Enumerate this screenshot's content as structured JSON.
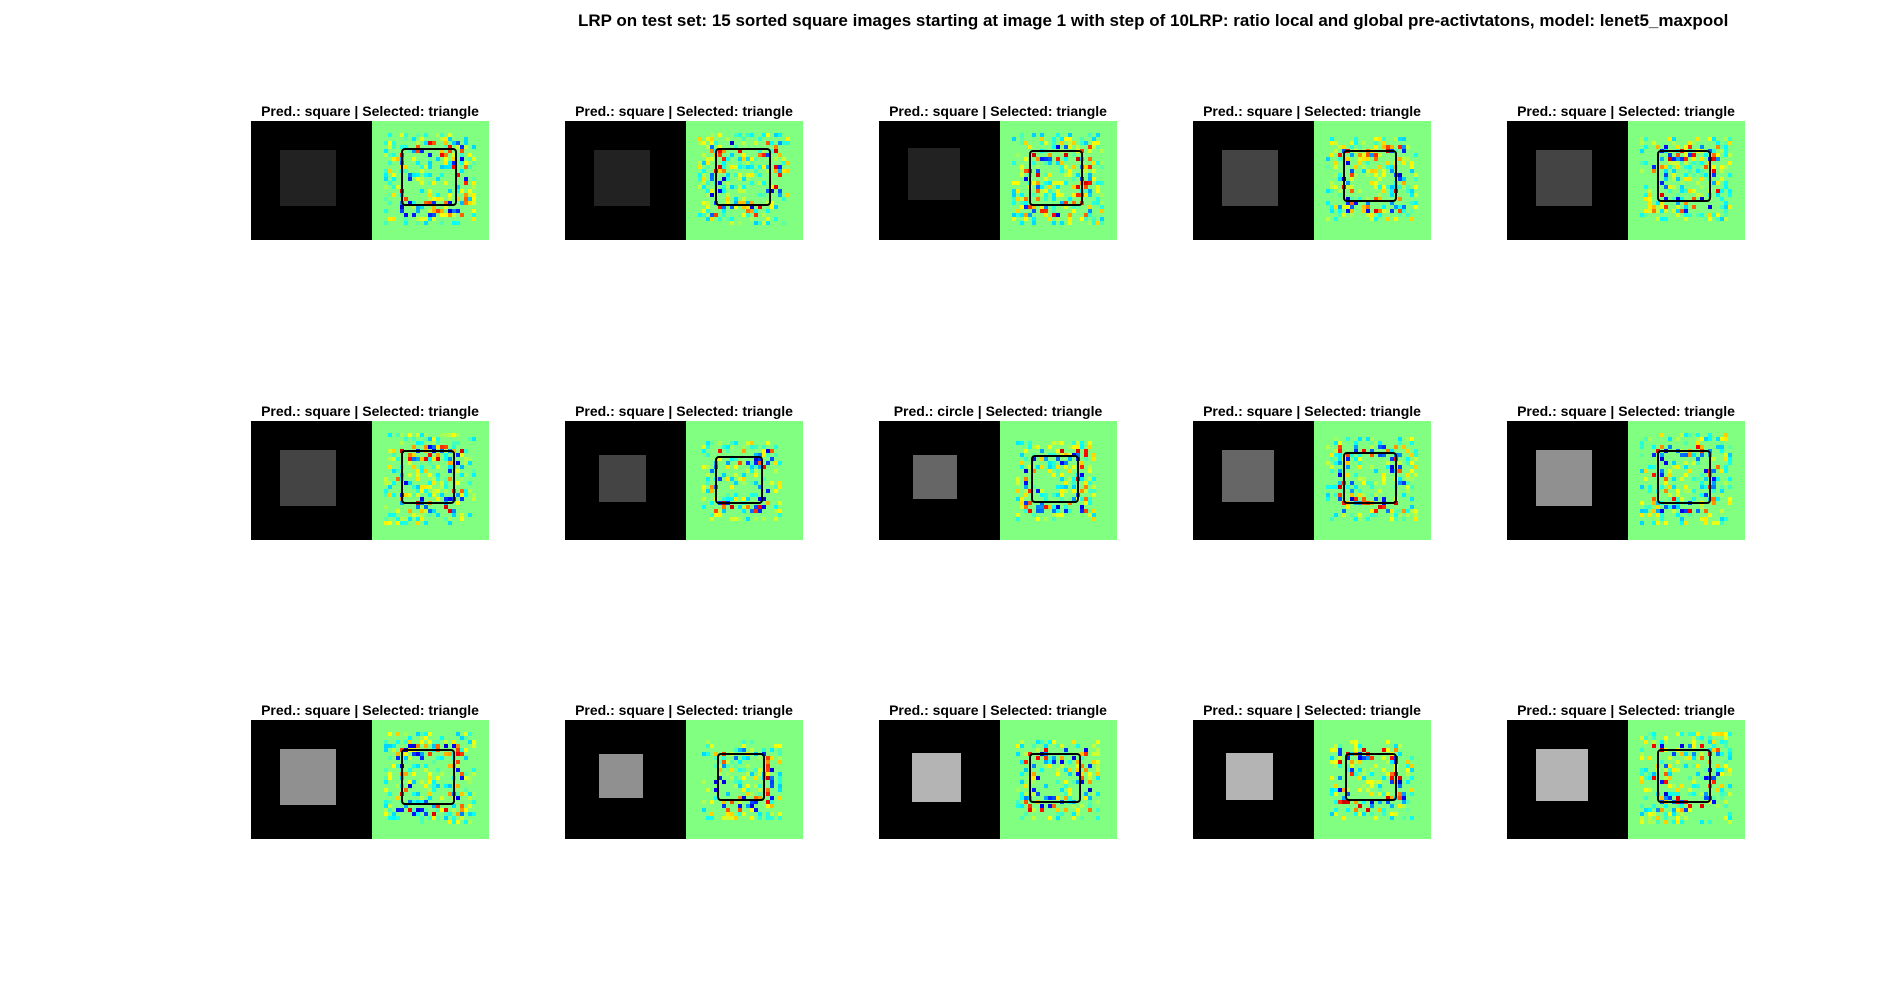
{
  "figure": {
    "title": "LRP on test set: 15 sorted square images starting at image 1 with step of 10LRP: ratio local and global pre-activtatons, model: lenet5_maxpool"
  },
  "colors": {
    "heatmap_background": "#80ff80",
    "input_background": "#000000",
    "outline": "#000000"
  },
  "panels": [
    {
      "title": "Pred.: square | Selected: triangle",
      "square_gray": "#222222"
    },
    {
      "title": "Pred.: square | Selected: triangle",
      "square_gray": "#222222"
    },
    {
      "title": "Pred.: square | Selected: triangle",
      "square_gray": "#222222"
    },
    {
      "title": "Pred.: square | Selected: triangle",
      "square_gray": "#444444"
    },
    {
      "title": "Pred.: square | Selected: triangle",
      "square_gray": "#444444"
    },
    {
      "title": "Pred.: square | Selected: triangle",
      "square_gray": "#444444"
    },
    {
      "title": "Pred.: square | Selected: triangle",
      "square_gray": "#444444"
    },
    {
      "title": "Pred.: circle | Selected: triangle",
      "square_gray": "#666666"
    },
    {
      "title": "Pred.: square | Selected: triangle",
      "square_gray": "#666666"
    },
    {
      "title": "Pred.: square | Selected: triangle",
      "square_gray": "#909090"
    },
    {
      "title": "Pred.: square | Selected: triangle",
      "square_gray": "#909090"
    },
    {
      "title": "Pred.: square | Selected: triangle",
      "square_gray": "#909090"
    },
    {
      "title": "Pred.: square | Selected: triangle",
      "square_gray": "#b4b4b4"
    },
    {
      "title": "Pred.: square | Selected: triangle",
      "square_gray": "#b4b4b4"
    },
    {
      "title": "Pred.: square | Selected: triangle",
      "square_gray": "#b4b4b4"
    }
  ]
}
